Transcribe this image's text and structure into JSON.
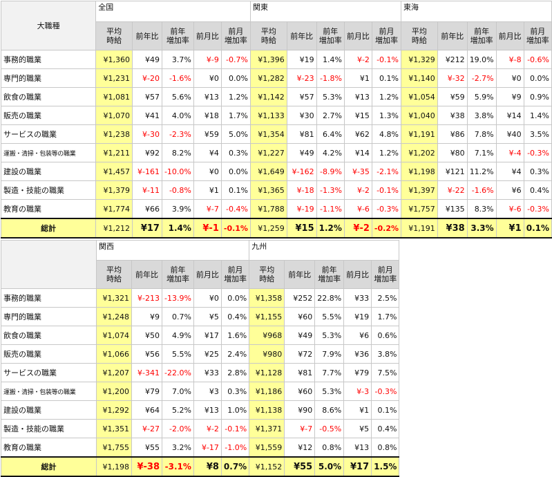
{
  "corner_label": "大職種",
  "subheaders": [
    [
      "平均",
      "時給"
    ],
    [
      "前年比"
    ],
    [
      "前年",
      "増加率"
    ],
    [
      "前月比"
    ],
    [
      "前月",
      "増加率"
    ]
  ],
  "categories": [
    "事務的職業",
    "専門的職業",
    "飲食の職業",
    "販売の職業",
    "サービスの職業",
    "運搬・清掃・包装等の職業",
    "建設の職業",
    "製造・技能の職業",
    "教育の職業"
  ],
  "total_label": "総計",
  "tables": [
    {
      "regions": [
        {
          "name": "全国",
          "rows": [
            [
              "¥1,360",
              "¥49",
              "3.7%",
              "¥-9",
              "-0.7%"
            ],
            [
              "¥1,231",
              "¥-20",
              "-1.6%",
              "¥0",
              "0.0%"
            ],
            [
              "¥1,081",
              "¥57",
              "5.6%",
              "¥13",
              "1.2%"
            ],
            [
              "¥1,070",
              "¥41",
              "4.0%",
              "¥18",
              "1.7%"
            ],
            [
              "¥1,238",
              "¥-30",
              "-2.3%",
              "¥59",
              "5.0%"
            ],
            [
              "¥1,211",
              "¥92",
              "8.2%",
              "¥4",
              "0.3%"
            ],
            [
              "¥1,457",
              "¥-161",
              "-10.0%",
              "¥0",
              "0.0%"
            ],
            [
              "¥1,379",
              "¥-11",
              "-0.8%",
              "¥1",
              "0.1%"
            ],
            [
              "¥1,774",
              "¥66",
              "3.9%",
              "¥-7",
              "-0.4%"
            ]
          ],
          "total": [
            "¥1,212",
            "¥17",
            "1.4%",
            "¥-1",
            "-0.1%"
          ]
        },
        {
          "name": "関東",
          "rows": [
            [
              "¥1,396",
              "¥19",
              "1.4%",
              "¥-2",
              "-0.1%"
            ],
            [
              "¥1,282",
              "¥-23",
              "-1.8%",
              "¥1",
              "0.1%"
            ],
            [
              "¥1,142",
              "¥57",
              "5.3%",
              "¥13",
              "1.2%"
            ],
            [
              "¥1,133",
              "¥30",
              "2.7%",
              "¥15",
              "1.3%"
            ],
            [
              "¥1,354",
              "¥81",
              "6.4%",
              "¥62",
              "4.8%"
            ],
            [
              "¥1,227",
              "¥49",
              "4.2%",
              "¥14",
              "1.2%"
            ],
            [
              "¥1,649",
              "¥-162",
              "-8.9%",
              "¥-35",
              "-2.1%"
            ],
            [
              "¥1,365",
              "¥-18",
              "-1.3%",
              "¥-2",
              "-0.1%"
            ],
            [
              "¥1,788",
              "¥-19",
              "-1.1%",
              "¥-6",
              "-0.3%"
            ]
          ],
          "total": [
            "¥1,259",
            "¥15",
            "1.2%",
            "¥-2",
            "-0.2%"
          ]
        },
        {
          "name": "東海",
          "rows": [
            [
              "¥1,329",
              "¥212",
              "19.0%",
              "¥-8",
              "-0.6%"
            ],
            [
              "¥1,140",
              "¥-32",
              "-2.7%",
              "¥0",
              "0.0%"
            ],
            [
              "¥1,054",
              "¥59",
              "5.9%",
              "¥9",
              "0.9%"
            ],
            [
              "¥1,040",
              "¥38",
              "3.8%",
              "¥14",
              "1.4%"
            ],
            [
              "¥1,191",
              "¥86",
              "7.8%",
              "¥40",
              "3.5%"
            ],
            [
              "¥1,202",
              "¥80",
              "7.1%",
              "¥-4",
              "-0.3%"
            ],
            [
              "¥1,198",
              "¥121",
              "11.2%",
              "¥4",
              "0.3%"
            ],
            [
              "¥1,397",
              "¥-22",
              "-1.6%",
              "¥6",
              "0.4%"
            ],
            [
              "¥1,757",
              "¥135",
              "8.3%",
              "¥-6",
              "-0.3%"
            ]
          ],
          "total": [
            "¥1,191",
            "¥38",
            "3.3%",
            "¥1",
            "0.1%"
          ]
        }
      ]
    },
    {
      "regions": [
        {
          "name": "関西",
          "rows": [
            [
              "¥1,321",
              "¥-213",
              "-13.9%",
              "¥0",
              "0.0%"
            ],
            [
              "¥1,248",
              "¥9",
              "0.7%",
              "¥5",
              "0.4%"
            ],
            [
              "¥1,074",
              "¥50",
              "4.9%",
              "¥17",
              "1.6%"
            ],
            [
              "¥1,066",
              "¥56",
              "5.5%",
              "¥25",
              "2.4%"
            ],
            [
              "¥1,207",
              "¥-341",
              "-22.0%",
              "¥33",
              "2.8%"
            ],
            [
              "¥1,200",
              "¥79",
              "7.0%",
              "¥3",
              "0.3%"
            ],
            [
              "¥1,292",
              "¥64",
              "5.2%",
              "¥13",
              "1.0%"
            ],
            [
              "¥1,351",
              "¥-27",
              "-2.0%",
              "¥-2",
              "-0.1%"
            ],
            [
              "¥1,755",
              "¥55",
              "3.2%",
              "¥-17",
              "-1.0%"
            ]
          ],
          "total": [
            "¥1,198",
            "¥-38",
            "-3.1%",
            "¥8",
            "0.7%"
          ]
        },
        {
          "name": "九州",
          "rows": [
            [
              "¥1,358",
              "¥252",
              "22.8%",
              "¥33",
              "2.5%"
            ],
            [
              "¥1,155",
              "¥60",
              "5.5%",
              "¥19",
              "1.7%"
            ],
            [
              "¥968",
              "¥49",
              "5.3%",
              "¥6",
              "0.6%"
            ],
            [
              "¥980",
              "¥72",
              "7.9%",
              "¥36",
              "3.8%"
            ],
            [
              "¥1,128",
              "¥81",
              "7.7%",
              "¥79",
              "7.5%"
            ],
            [
              "¥1,186",
              "¥60",
              "5.3%",
              "¥-3",
              "-0.3%"
            ],
            [
              "¥1,138",
              "¥90",
              "8.6%",
              "¥1",
              "0.1%"
            ],
            [
              "¥1,371",
              "¥-7",
              "-0.5%",
              "¥5",
              "0.4%"
            ],
            [
              "¥1,559",
              "¥12",
              "0.8%",
              "¥13",
              "0.8%"
            ]
          ],
          "total": [
            "¥1,152",
            "¥55",
            "5.0%",
            "¥17",
            "1.5%"
          ]
        }
      ]
    }
  ],
  "colors": {
    "highlight": "#ffff99",
    "subheader": "#d9d9d9",
    "negative": "#ff0000",
    "border": "#c7c7c7"
  }
}
